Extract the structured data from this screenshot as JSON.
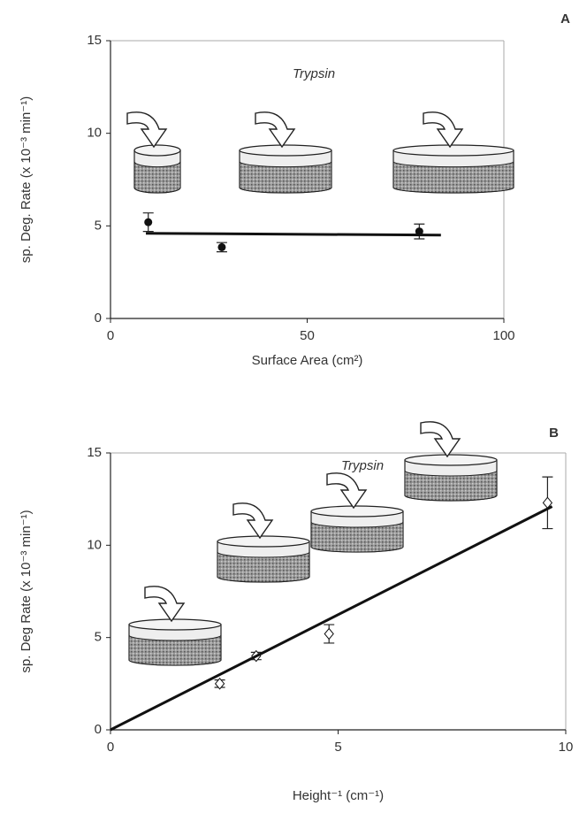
{
  "chart_data": [
    {
      "type": "scatter",
      "panel_label": "A",
      "annotation": "Trypsin",
      "x_label": "Surface Area (cm²)",
      "y_label": "sp. Deg. Rate (x 10⁻³ min⁻¹)",
      "xlim": [
        0,
        100
      ],
      "ylim": [
        0,
        15
      ],
      "xticks": [
        0,
        50,
        100
      ],
      "yticks": [
        0,
        5,
        10,
        15
      ],
      "series": [
        {
          "marker": "circle",
          "color": "#111111",
          "x": [
            9.6,
            28.3,
            78.5
          ],
          "values": [
            5.2,
            3.85,
            4.7
          ],
          "errors": [
            0.5,
            0.25,
            0.4
          ]
        },
        {
          "marker": "line",
          "color": "#111111",
          "x": [
            9,
            84
          ],
          "values": [
            4.6,
            4.5
          ]
        }
      ]
    },
    {
      "type": "scatter",
      "panel_label": "B",
      "annotation": "Trypsin",
      "x_label": "Height⁻¹ (cm⁻¹)",
      "y_label": "sp. Deg Rate (x 10⁻³ min⁻¹)",
      "xlim": [
        0,
        10
      ],
      "ylim": [
        0,
        15
      ],
      "xticks": [
        0,
        5,
        10
      ],
      "yticks": [
        0,
        5,
        10,
        15
      ],
      "series": [
        {
          "marker": "diamond",
          "color": "#111111",
          "x": [
            2.4,
            3.2,
            4.8,
            9.6
          ],
          "values": [
            2.5,
            4.0,
            5.2,
            12.3
          ],
          "errors": [
            0.2,
            0.2,
            0.5,
            1.4
          ]
        },
        {
          "marker": "line",
          "color": "#111111",
          "x": [
            0,
            9.7
          ],
          "values": [
            0,
            12.1
          ]
        }
      ]
    }
  ]
}
